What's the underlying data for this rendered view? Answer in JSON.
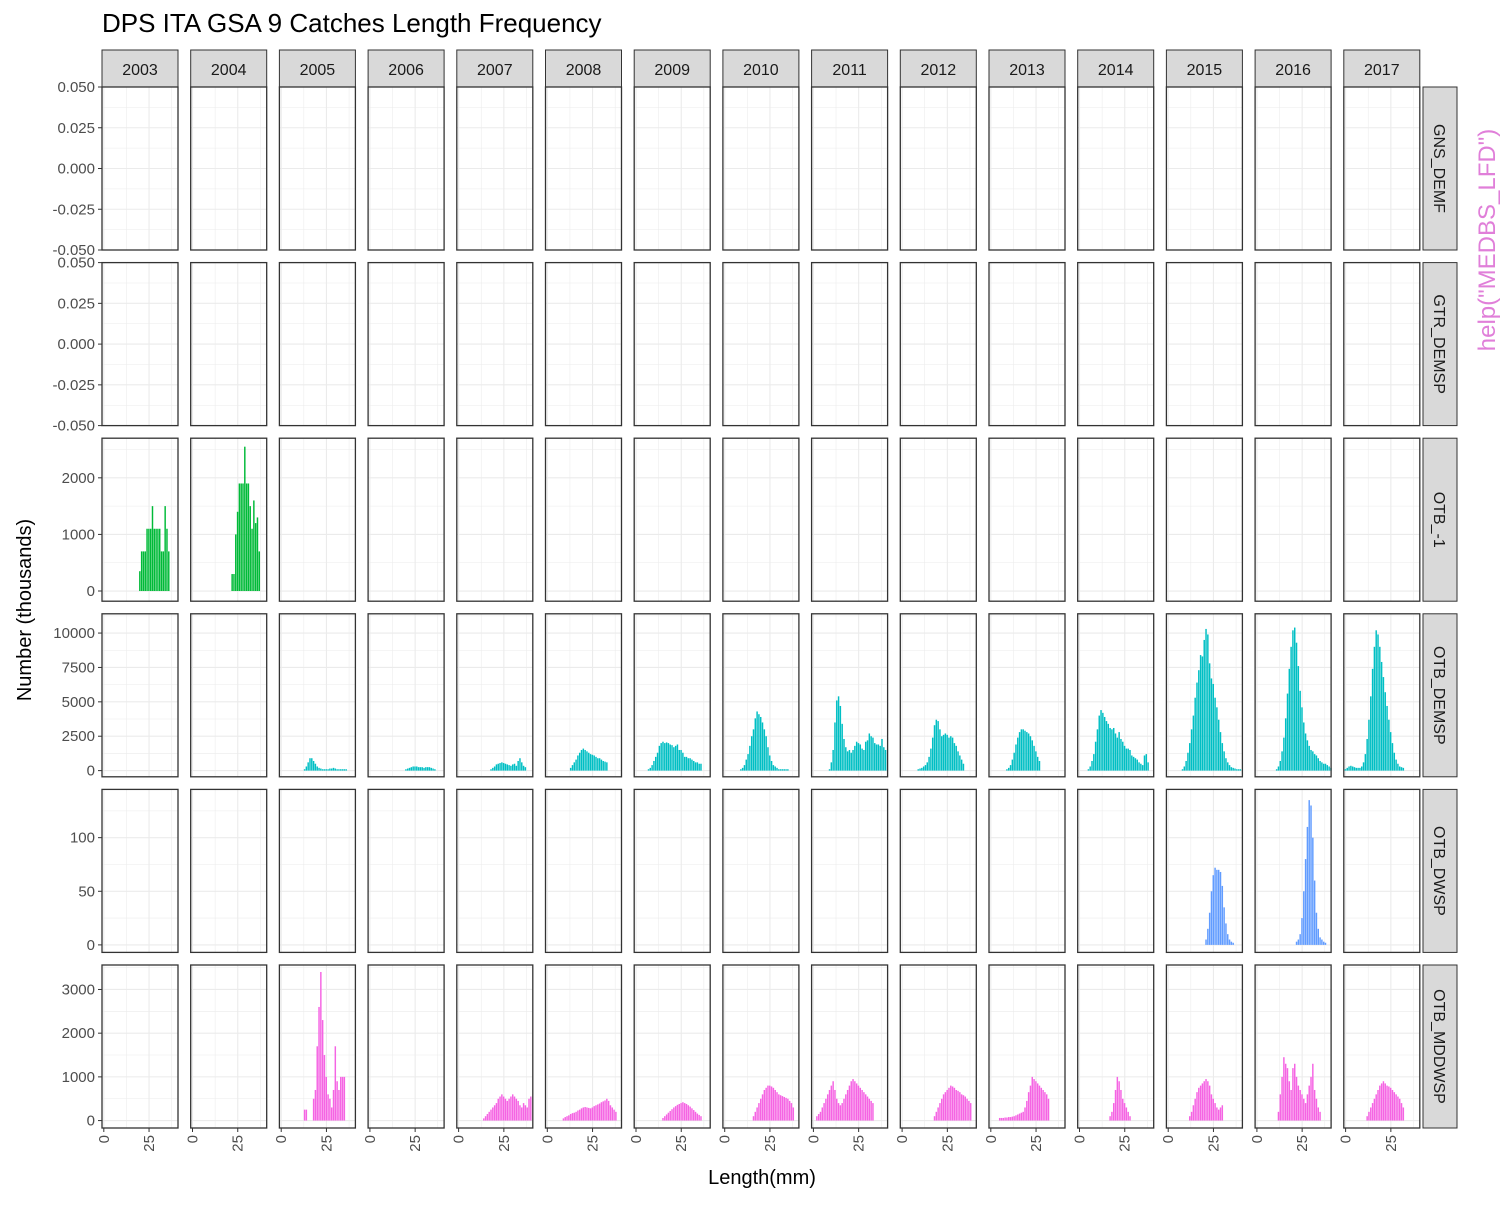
{
  "chart_data": {
    "type": "bar",
    "title": "DPS ITA GSA 9 Catches Length Frequency",
    "xlabel": "Length(mm)",
    "ylabel": "Number  (thousands)",
    "watermark": "help(\"MEDBS_LFD\")",
    "watermark_color": "#E07FD9",
    "grid": true,
    "columns": [
      "2003",
      "2004",
      "2005",
      "2006",
      "2007",
      "2008",
      "2009",
      "2010",
      "2011",
      "2012",
      "2013",
      "2014",
      "2015",
      "2016",
      "2017"
    ],
    "x_ticks": [
      0,
      25
    ],
    "xlim": [
      -1,
      41
    ],
    "rows": [
      {
        "label": "GNS_DEMF",
        "color": "#F8766D",
        "ylim": [
          -0.05,
          0.05
        ],
        "y_ticks": [
          -0.05,
          -0.025,
          0,
          0.025,
          0.05
        ],
        "y_tick_labels": [
          "-0.050",
          "-0.025",
          "0.000",
          "0.025",
          "0.050"
        ],
        "panels": {}
      },
      {
        "label": "GTR_DEMSP",
        "color": "#B79F00",
        "ylim": [
          -0.05,
          0.05
        ],
        "y_ticks": [
          -0.05,
          -0.025,
          0,
          0.025,
          0.05
        ],
        "y_tick_labels": [
          "-0.050",
          "-0.025",
          "0.000",
          "0.025",
          "0.050"
        ],
        "panels": {}
      },
      {
        "label": "OTB_-1",
        "color": "#00BA38",
        "ylim": [
          -180,
          2700
        ],
        "y_ticks": [
          0,
          1000,
          2000
        ],
        "y_tick_labels": [
          "0",
          "1000",
          "2000"
        ],
        "panels": {
          "2003": {
            "x0": 20,
            "values": [
              350,
              700,
              700,
              700,
              1100,
              1100,
              1100,
              1500,
              1100,
              1100,
              1100,
              1100,
              700,
              700,
              1500,
              1100,
              700
            ]
          },
          "2004": {
            "x0": 22,
            "values": [
              300,
              300,
              1000,
              1400,
              1900,
              1900,
              1900,
              2550,
              1900,
              1900,
              1500,
              1100,
              1600,
              1200,
              1300,
              700
            ]
          }
        }
      },
      {
        "label": "OTB_DEMSP",
        "color": "#00BFC4",
        "ylim": [
          -450,
          11400
        ],
        "y_ticks": [
          0,
          2500,
          5000,
          7500,
          10000
        ],
        "y_tick_labels": [
          "0",
          "2500",
          "5000",
          "7500",
          "10000"
        ],
        "panels": {
          "2005": {
            "x0": 13,
            "values": [
              100,
              300,
              600,
              900,
              900,
              700,
              500,
              300,
              200,
              150,
              100,
              100,
              100,
              100,
              150,
              150,
              200,
              150,
              100,
              100,
              100,
              100,
              100,
              100
            ]
          },
          "2006": {
            "x0": 20,
            "values": [
              100,
              150,
              200,
              250,
              300,
              300,
              300,
              250,
              250,
              250,
              200,
              250,
              250,
              250,
              200,
              150,
              100
            ]
          },
          "2007": {
            "x0": 18,
            "values": [
              100,
              200,
              300,
              450,
              500,
              550,
              600,
              550,
              500,
              450,
              400,
              350,
              450,
              500,
              350,
              700,
              900,
              600,
              350,
              250
            ]
          },
          "2008": {
            "x0": 13,
            "values": [
              200,
              400,
              600,
              800,
              1100,
              1300,
              1500,
              1600,
              1500,
              1400,
              1300,
              1200,
              1150,
              1100,
              1000,
              900,
              900,
              800,
              700,
              650,
              600
            ]
          },
          "2009": {
            "x0": 7,
            "values": [
              100,
              200,
              400,
              700,
              1000,
              1300,
              1800,
              2000,
              2100,
              2000,
              2050,
              2000,
              1900,
              1850,
              1700,
              1800,
              1900,
              1500,
              1500,
              1300,
              1000,
              1000,
              900,
              900,
              800,
              700,
              600,
              600,
              500,
              500
            ]
          },
          "2010": {
            "x0": 9,
            "values": [
              100,
              200,
              400,
              800,
              1200,
              1800,
              2500,
              3000,
              3800,
              4300,
              4100,
              3900,
              3500,
              3000,
              2500,
              1700,
              1100,
              700,
              400,
              300,
              200,
              100,
              100,
              100,
              100,
              100,
              100
            ]
          },
          "2011": {
            "x0": 9,
            "values": [
              100,
              600,
              1500,
              3500,
              5100,
              5400,
              4700,
              3400,
              2300,
              1700,
              1400,
              1500,
              1300,
              1500,
              1800,
              2100,
              2000,
              1900,
              1600,
              1500,
              2100,
              2200,
              2700,
              2500,
              2400,
              2000,
              1900,
              1900,
              1800,
              2300,
              1700,
              1500
            ]
          },
          "2012": {
            "x0": 9,
            "values": [
              100,
              150,
              200,
              300,
              400,
              600,
              1000,
              1600,
              2400,
              3300,
              3700,
              3600,
              3000,
              2500,
              2600,
              2700,
              2600,
              2400,
              2500,
              2400,
              2000,
              1800,
              1400,
              1100,
              800,
              500
            ]
          },
          "2013": {
            "x0": 9,
            "values": [
              100,
              200,
              400,
              800,
              1300,
              1900,
              2400,
              2800,
              3000,
              3000,
              2900,
              2800,
              2700,
              2500,
              2200,
              1800,
              1400,
              1000,
              700
            ]
          },
          "2014": {
            "x0": 5,
            "values": [
              100,
              300,
              700,
              1200,
              2100,
              3000,
              4000,
              4400,
              4200,
              3900,
              3600,
              3400,
              3100,
              3000,
              3100,
              2700,
              2400,
              2800,
              2300,
              2100,
              1800,
              1600,
              1600,
              1500,
              1100,
              1000,
              900,
              800,
              600,
              500,
              400,
              1100,
              1200,
              600
            ]
          },
          "2015": {
            "x0": 8,
            "values": [
              100,
              300,
              700,
              1300,
              2000,
              3000,
              4000,
              5300,
              6400,
              7300,
              8400,
              8300,
              9500,
              10300,
              9900,
              7800,
              6700,
              6300,
              5300,
              4600,
              3700,
              2800,
              2000,
              1400,
              900,
              600,
              400,
              250,
              200,
              150,
              100,
              100,
              100
            ]
          },
          "2016": {
            "x0": 11,
            "values": [
              100,
              300,
              700,
              1400,
              2400,
              3800,
              5600,
              7400,
              9000,
              10200,
              10400,
              9300,
              7600,
              5800,
              4600,
              3500,
              2700,
              2200,
              1800,
              1500,
              1400,
              1200,
              1100,
              900,
              700,
              600,
              500,
              500,
              400,
              300,
              200
            ]
          },
          "2017": {
            "x0": 0,
            "values": [
              100,
              200,
              300,
              350,
              300,
              250,
              200,
              200,
              200,
              300,
              600,
              1200,
              2300,
              3700,
              5400,
              7400,
              9000,
              10200,
              9900,
              9000,
              7900,
              6800,
              5700,
              4700,
              3700,
              2800,
              2000,
              1300,
              800,
              500,
              300,
              250,
              200
            ]
          }
        }
      },
      {
        "label": "OTB_DWSP",
        "color": "#619CFF",
        "ylim": [
          -7,
          145
        ],
        "y_ticks": [
          0,
          50,
          100
        ],
        "y_tick_labels": [
          "0",
          "50",
          "100"
        ],
        "panels": {
          "2015": {
            "x0": 21,
            "values": [
              5,
              15,
              30,
              50,
              65,
              72,
              70,
              70,
              68,
              55,
              35,
              20,
              10,
              5,
              3,
              2
            ]
          },
          "2016": {
            "x0": 22,
            "values": [
              3,
              5,
              10,
              25,
              50,
              80,
              110,
              135,
              130,
              100,
              60,
              30,
              15,
              7,
              5,
              3,
              2
            ]
          }
        }
      },
      {
        "label": "OTB_MDDWSP",
        "color": "#F564E3",
        "ylim": [
          -170,
          3560
        ],
        "y_ticks": [
          0,
          1000,
          2000,
          3000
        ],
        "y_tick_labels": [
          "0",
          "1000",
          "2000",
          "3000"
        ],
        "panels": {
          "2005": {
            "x0": 12,
            "values": [
              0,
              250,
              250,
              0,
              0,
              0,
              500,
              700,
              1700,
              2600,
              3400,
              2300,
              1500,
              1000,
              600,
              500,
              300,
              700,
              1700,
              900,
              700,
              1000,
              1000,
              1000
            ]
          },
          "2007": {
            "x0": 14,
            "values": [
              50,
              100,
              150,
              200,
              250,
              300,
              350,
              400,
              500,
              550,
              600,
              550,
              500,
              450,
              500,
              550,
              600,
              550,
              500,
              450,
              350,
              300,
              400,
              350,
              300,
              500,
              550
            ]
          },
          "2008": {
            "x0": 9,
            "values": [
              50,
              80,
              100,
              120,
              150,
              170,
              180,
              200,
              230,
              250,
              280,
              300,
              310,
              300,
              290,
              280,
              300,
              330,
              350,
              370,
              390,
              420,
              440,
              460,
              500,
              450,
              350,
              300,
              250,
              200
            ]
          },
          "2009": {
            "x0": 15,
            "values": [
              60,
              100,
              140,
              180,
              220,
              260,
              300,
              330,
              360,
              380,
              400,
              420,
              400,
              380,
              350,
              320,
              280,
              240,
              200,
              160,
              130,
              100
            ]
          },
          "2010": {
            "x0": 16,
            "values": [
              100,
              200,
              300,
              400,
              500,
              600,
              700,
              750,
              800,
              800,
              780,
              750,
              700,
              650,
              600,
              580,
              560,
              540,
              520,
              500,
              450,
              400,
              300
            ]
          },
          "2011": {
            "x0": 2,
            "values": [
              100,
              150,
              200,
              300,
              400,
              500,
              600,
              700,
              800,
              900,
              700,
              500,
              400,
              350,
              400,
              500,
              600,
              700,
              800,
              900,
              950,
              900,
              850,
              800,
              750,
              700,
              650,
              600,
              550,
              500,
              450,
              400
            ]
          },
          "2012": {
            "x0": 18,
            "values": [
              100,
              200,
              300,
              400,
              500,
              600,
              650,
              700,
              750,
              800,
              780,
              750,
              700,
              680,
              650,
              600,
              580,
              550,
              500,
              450,
              400
            ]
          },
          "2013": {
            "x0": 5,
            "values": [
              60,
              60,
              60,
              70,
              70,
              80,
              80,
              90,
              100,
              120,
              140,
              160,
              180,
              200,
              300,
              450,
              650,
              800,
              1000,
              950,
              900,
              850,
              800,
              750,
              700,
              650,
              600,
              500
            ]
          },
          "2014": {
            "x0": 17,
            "values": [
              100,
              200,
              400,
              700,
              1000,
              900,
              700,
              500,
              400,
              300,
              200,
              100
            ]
          },
          "2015": {
            "x0": 12,
            "values": [
              100,
              200,
              350,
              500,
              650,
              750,
              800,
              850,
              900,
              950,
              900,
              800,
              600,
              500,
              400,
              300,
              250,
              300,
              350
            ]
          },
          "2016": {
            "x0": 12,
            "values": [
              200,
              600,
              1000,
              1450,
              1300,
              1200,
              900,
              700,
              1200,
              1300,
              1000,
              800,
              700,
              600,
              500,
              400,
              600,
              800,
              1000,
              1300,
              700,
              500,
              300,
              200
            ]
          },
          "2017": {
            "x0": 12,
            "values": [
              100,
              200,
              300,
              400,
              500,
              600,
              700,
              800,
              850,
              900,
              850,
              800,
              780,
              750,
              700,
              650,
              600,
              550,
              500,
              400,
              300
            ]
          }
        }
      }
    ]
  }
}
